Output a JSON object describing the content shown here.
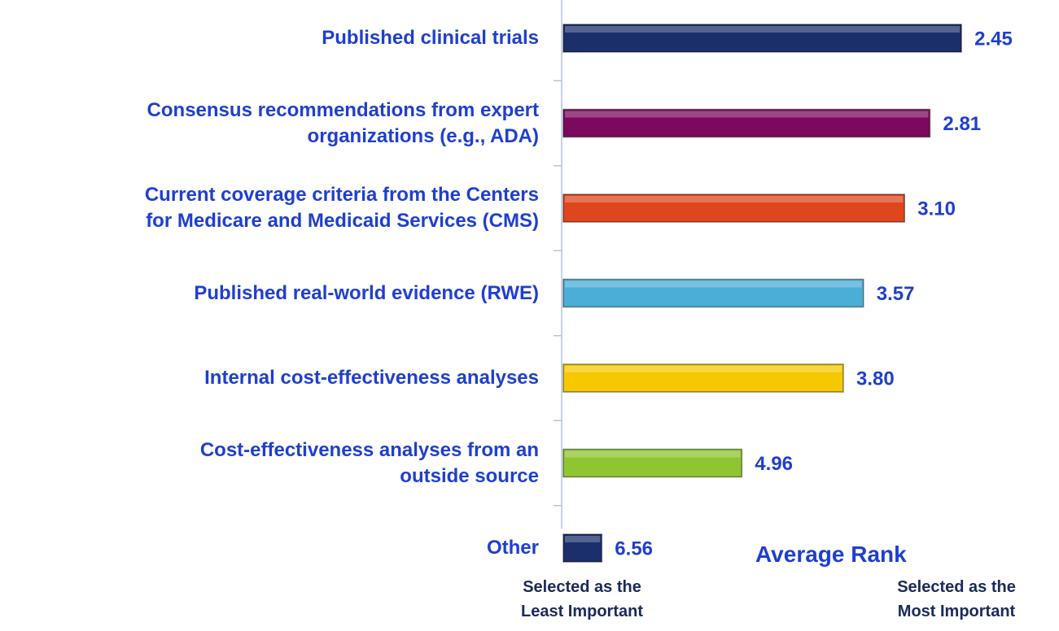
{
  "chart_data": {
    "type": "barh",
    "categories": [
      "Published clinical trials",
      "Consensus recommendations from expert\norganizations (e.g., ADA)",
      "Current coverage criteria from the Centers\nfor Medicare and Medicaid Services (CMS)",
      "Published real-world evidence (RWE)",
      "Internal cost-effectiveness analyses",
      "Cost-effectiveness analyses from an\noutside source",
      "Other"
    ],
    "values": [
      2.45,
      2.81,
      3.1,
      3.57,
      3.8,
      4.96,
      6.56
    ],
    "value_labels": [
      "2.45",
      "2.81",
      "3.10",
      "3.57",
      "3.80",
      "4.96",
      "6.56"
    ],
    "colors": [
      "#1b2f6b",
      "#7b0a5e",
      "#e0461e",
      "#4aaed6",
      "#f5c800",
      "#8fc531",
      "#1b2f6b"
    ],
    "xlim": [
      7,
      1
    ],
    "x_label": "Average Rank",
    "left_note": "Selected as the\nLeast Important",
    "right_note": "Selected as the\nMost Important"
  }
}
